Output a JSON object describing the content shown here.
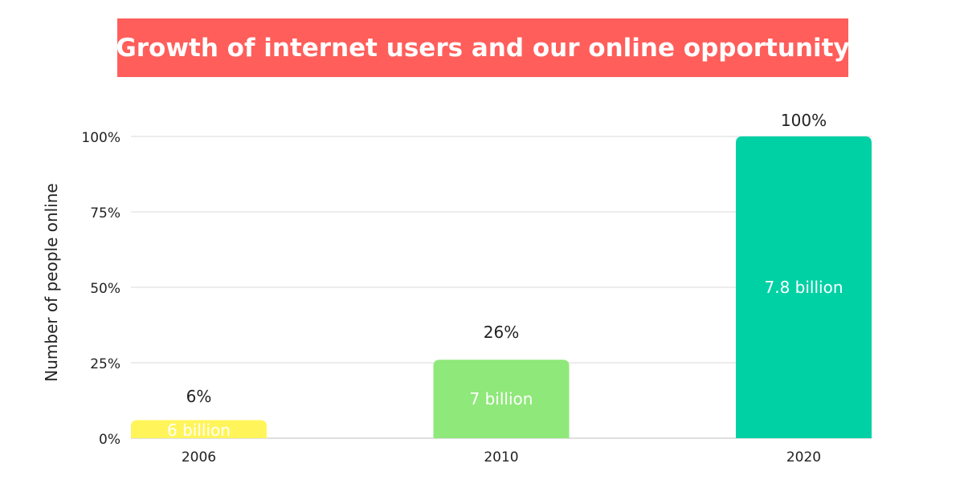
{
  "title": "Growth of internet users and our online opportunity",
  "colors": {
    "title_bg": "#ff5e5b",
    "grid": "#d9d9d9",
    "bar_2006": "#fff55a",
    "bar_2010": "#8fe87a",
    "bar_2020": "#00d1a5"
  },
  "chart_data": {
    "type": "bar",
    "ylabel": "Number of people online",
    "xlabel": "",
    "ylim": [
      0,
      100
    ],
    "yticks": [
      "0%",
      "25%",
      "50%",
      "75%",
      "100%"
    ],
    "ytick_values": [
      0,
      25,
      50,
      75,
      100
    ],
    "grid": true,
    "categories": [
      "2006",
      "2010",
      "2020"
    ],
    "values": [
      6,
      26,
      100
    ],
    "value_labels": [
      "6%",
      "26%",
      "100%"
    ],
    "bar_labels": [
      "6 billion",
      "7 billion",
      "7.8 billion"
    ],
    "bar_colors": [
      "#fff55a",
      "#8fe87a",
      "#00d1a5"
    ]
  }
}
